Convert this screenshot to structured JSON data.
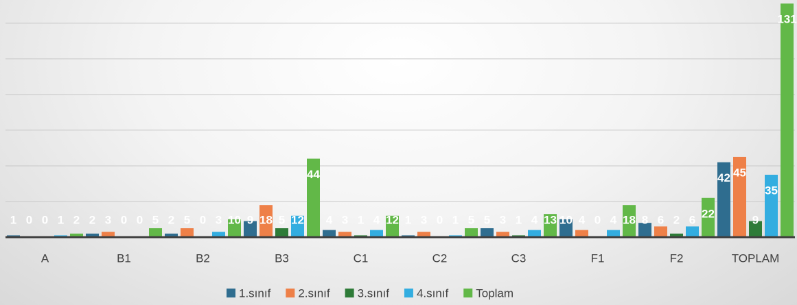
{
  "chart_data": {
    "type": "bar",
    "categories": [
      "A",
      "B1",
      "B2",
      "B3",
      "C1",
      "C2",
      "C3",
      "F1",
      "F2",
      "TOPLAM"
    ],
    "series": [
      {
        "name": "1.sınıf",
        "color": "#2f6d8f",
        "values": [
          1,
          2,
          2,
          9,
          4,
          1,
          5,
          10,
          8,
          42
        ]
      },
      {
        "name": "2.sınıf",
        "color": "#ee8048",
        "values": [
          0,
          3,
          5,
          18,
          3,
          3,
          3,
          4,
          6,
          45
        ]
      },
      {
        "name": "3.sınıf",
        "color": "#2e7b38",
        "values": [
          0,
          0,
          0,
          5,
          1,
          0,
          1,
          0,
          2,
          9
        ]
      },
      {
        "name": "4.sınıf",
        "color": "#33ade0",
        "values": [
          1,
          0,
          3,
          12,
          4,
          1,
          4,
          4,
          6,
          35
        ]
      },
      {
        "name": "Toplam",
        "color": "#62b848",
        "values": [
          2,
          5,
          10,
          44,
          12,
          5,
          13,
          18,
          22,
          131
        ]
      }
    ],
    "ylim": [
      0,
      133
    ],
    "yticks": [
      0,
      20,
      40,
      60,
      80,
      100,
      120
    ],
    "grid": true,
    "legend": "bottom"
  }
}
